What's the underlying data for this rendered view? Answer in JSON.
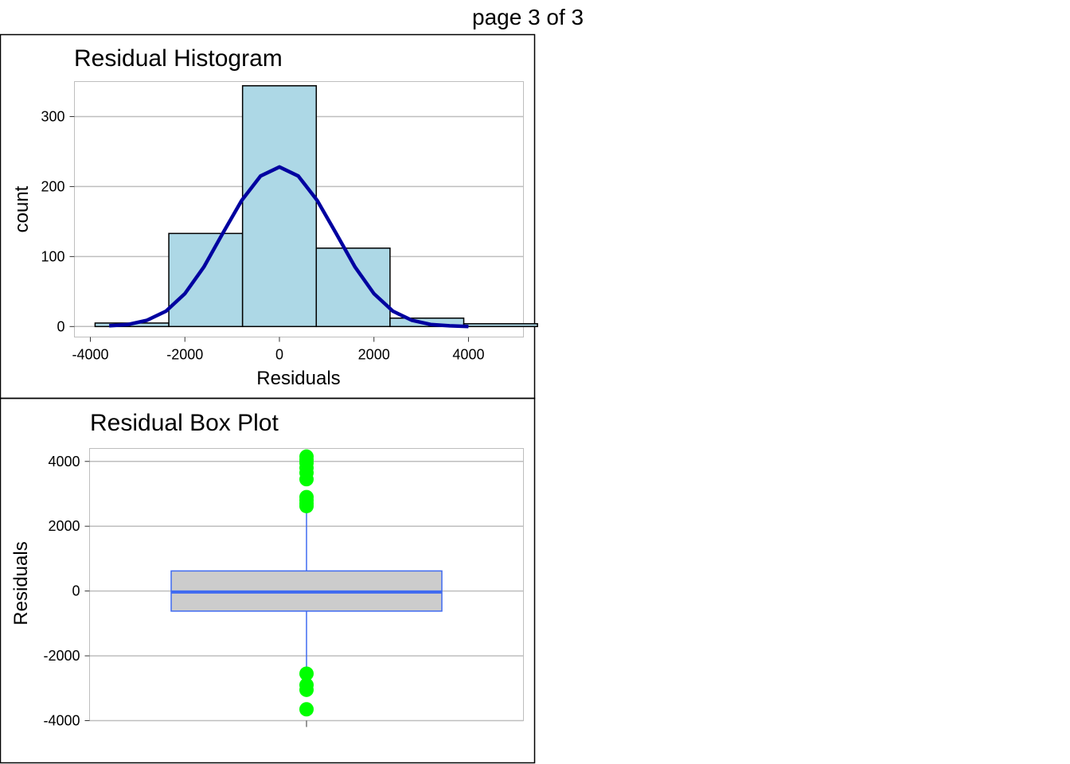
{
  "page": {
    "label": "page 3 of 3"
  },
  "colors": {
    "bar_fill": "#ADD8E6",
    "curve": "#0000A0",
    "box_fill": "#CCCCCC",
    "box_line": "#3F6AF0",
    "outlier": "#00FF00",
    "grid": "#BEBEBE"
  },
  "chart_data": [
    {
      "type": "bar",
      "title": "Residual Histogram",
      "xlabel": "Residuals",
      "ylabel": "count",
      "xlim": [
        -4000,
        5500
      ],
      "ylim": [
        -15,
        350
      ],
      "xticks": [
        -4000,
        -2000,
        0,
        2000,
        4000
      ],
      "yticks": [
        0,
        100,
        200,
        300
      ],
      "grid": true,
      "bins": [
        {
          "x0": -3900,
          "x1": -2340,
          "count": 5
        },
        {
          "x0": -2340,
          "x1": -780,
          "count": 133
        },
        {
          "x0": -780,
          "x1": 780,
          "count": 344
        },
        {
          "x0": 780,
          "x1": 2340,
          "count": 112
        },
        {
          "x0": 2340,
          "x1": 3900,
          "count": 12
        },
        {
          "x0": 3900,
          "x1": 5460,
          "count": 4
        }
      ],
      "density_curve": {
        "x": [
          -3600,
          -3200,
          -2800,
          -2400,
          -2000,
          -1600,
          -1200,
          -800,
          -400,
          0,
          400,
          800,
          1200,
          1600,
          2000,
          2400,
          2800,
          3200,
          3600,
          4000
        ],
        "count": [
          1,
          3,
          9,
          22,
          47,
          85,
          133,
          180,
          215,
          228,
          215,
          180,
          133,
          85,
          47,
          22,
          9,
          3,
          1,
          0
        ]
      }
    },
    {
      "type": "box",
      "title": "Residual Box Plot",
      "xlabel": "",
      "ylabel": "Residuals",
      "ylim": [
        -4000,
        4400
      ],
      "yticks": [
        -4000,
        -2000,
        0,
        2000,
        4000
      ],
      "grid": true,
      "q1": -620,
      "median": -30,
      "q3": 620,
      "whisker_low": -2480,
      "whisker_high": 2480,
      "outliers": [
        4150,
        4050,
        3950,
        3800,
        3650,
        3450,
        2900,
        2800,
        2700,
        2620,
        -2550,
        -2900,
        -3050,
        -3650
      ]
    }
  ]
}
